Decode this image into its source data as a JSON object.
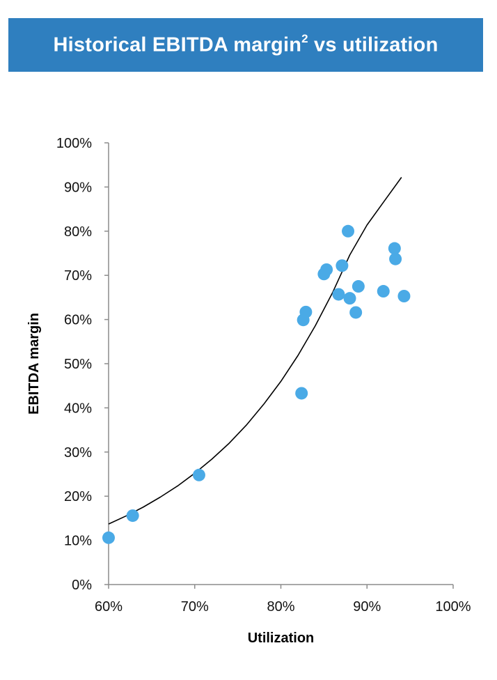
{
  "header": {
    "title": "Historical EBITDA margin",
    "superscript": "2",
    "title_suffix": " vs utilization",
    "background_color": "#2f7fbf"
  },
  "chart_data": {
    "type": "scatter",
    "title": "Historical EBITDA margin² vs utilization",
    "xlabel": "Utilization",
    "ylabel": "EBITDA margin",
    "xlim": [
      0.6,
      1.0
    ],
    "ylim": [
      0.0,
      1.0
    ],
    "x_ticks": [
      0.6,
      0.7,
      0.8,
      0.9,
      1.0
    ],
    "x_tick_labels": [
      "60%",
      "70%",
      "80%",
      "90%",
      "100%"
    ],
    "y_ticks": [
      0.0,
      0.1,
      0.2,
      0.3,
      0.4,
      0.5,
      0.6,
      0.7,
      0.8,
      0.9,
      1.0
    ],
    "y_tick_labels": [
      "0%",
      "10%",
      "20%",
      "30%",
      "40%",
      "50%",
      "60%",
      "70%",
      "80%",
      "90%",
      "100%"
    ],
    "grid": false,
    "legend": "none",
    "point_color": "#4aaae6",
    "trendline_color": "#000000",
    "trendline": {
      "type": "exponential",
      "x": [
        0.6,
        0.62,
        0.64,
        0.66,
        0.68,
        0.7,
        0.72,
        0.74,
        0.76,
        0.78,
        0.8,
        0.82,
        0.84,
        0.86,
        0.88,
        0.9,
        0.92,
        0.94
      ],
      "y": [
        0.137,
        0.155,
        0.175,
        0.198,
        0.223,
        0.252,
        0.284,
        0.32,
        0.361,
        0.408,
        0.46,
        0.519,
        0.586,
        0.661,
        0.746,
        0.814,
        0.868,
        0.922
      ]
    },
    "points": [
      {
        "x": 0.6,
        "y": 0.106
      },
      {
        "x": 0.628,
        "y": 0.156
      },
      {
        "x": 0.705,
        "y": 0.248
      },
      {
        "x": 0.824,
        "y": 0.433
      },
      {
        "x": 0.826,
        "y": 0.599
      },
      {
        "x": 0.829,
        "y": 0.617
      },
      {
        "x": 0.85,
        "y": 0.703
      },
      {
        "x": 0.853,
        "y": 0.713
      },
      {
        "x": 0.867,
        "y": 0.657
      },
      {
        "x": 0.871,
        "y": 0.722
      },
      {
        "x": 0.878,
        "y": 0.8
      },
      {
        "x": 0.88,
        "y": 0.648
      },
      {
        "x": 0.887,
        "y": 0.616
      },
      {
        "x": 0.89,
        "y": 0.675
      },
      {
        "x": 0.919,
        "y": 0.664
      },
      {
        "x": 0.932,
        "y": 0.761
      },
      {
        "x": 0.933,
        "y": 0.737
      },
      {
        "x": 0.943,
        "y": 0.653
      }
    ]
  }
}
